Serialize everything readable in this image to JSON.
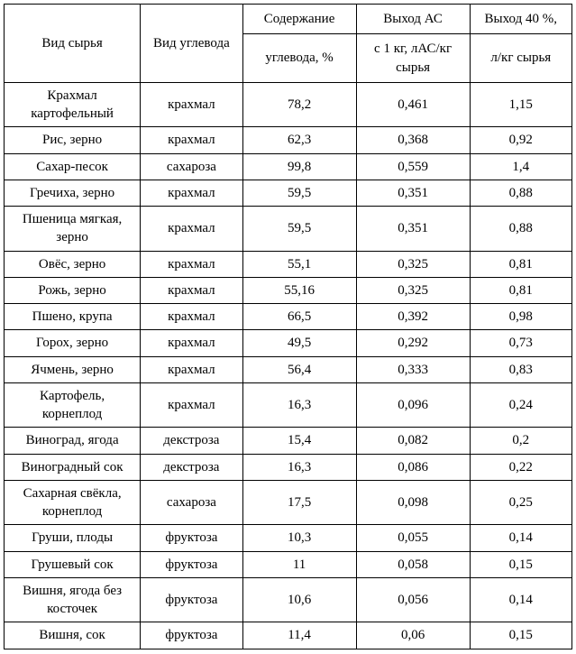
{
  "table": {
    "type": "table",
    "background_color": "#ffffff",
    "border_color": "#000000",
    "font_family": "Times New Roman",
    "font_size": 15,
    "text_color": "#000000",
    "columns": [
      {
        "key": "raw",
        "header1": "Вид сырья",
        "header2": "",
        "width_pct": 24,
        "align": "center"
      },
      {
        "key": "carb",
        "header1": "Вид углевода",
        "header2": "",
        "width_pct": 18,
        "align": "center"
      },
      {
        "key": "content",
        "header1": "Содержание",
        "header2": "углевода, %",
        "width_pct": 20,
        "align": "center"
      },
      {
        "key": "ac",
        "header1": "Выход АС",
        "header2": "с 1 кг, лАС/кг сырья",
        "width_pct": 20,
        "align": "center"
      },
      {
        "key": "forty",
        "header1": "Выход 40 %,",
        "header2": "л/кг сырья",
        "width_pct": 18,
        "align": "center"
      }
    ],
    "rows": [
      {
        "raw": "Крахмал картофельный",
        "carb": "крахмал",
        "content": "78,2",
        "ac": "0,461",
        "forty": "1,15"
      },
      {
        "raw": "Рис, зерно",
        "carb": "крахмал",
        "content": "62,3",
        "ac": "0,368",
        "forty": "0,92"
      },
      {
        "raw": "Сахар-песок",
        "carb": "сахароза",
        "content": "99,8",
        "ac": "0,559",
        "forty": "1,4"
      },
      {
        "raw": "Гречиха, зерно",
        "carb": "крахмал",
        "content": "59,5",
        "ac": "0,351",
        "forty": "0,88"
      },
      {
        "raw": "Пшеница мягкая, зерно",
        "carb": "крахмал",
        "content": "59,5",
        "ac": "0,351",
        "forty": "0,88"
      },
      {
        "raw": "Овёс, зерно",
        "carb": "крахмал",
        "content": "55,1",
        "ac": "0,325",
        "forty": "0,81"
      },
      {
        "raw": "Рожь, зерно",
        "carb": "крахмал",
        "content": "55,16",
        "ac": "0,325",
        "forty": "0,81"
      },
      {
        "raw": "Пшено, крупа",
        "carb": "крахмал",
        "content": "66,5",
        "ac": "0,392",
        "forty": "0,98"
      },
      {
        "raw": "Горох, зерно",
        "carb": "крахмал",
        "content": "49,5",
        "ac": "0,292",
        "forty": "0,73"
      },
      {
        "raw": "Ячмень, зерно",
        "carb": "крахмал",
        "content": "56,4",
        "ac": "0,333",
        "forty": "0,83"
      },
      {
        "raw": "Картофель, корнеплод",
        "carb": "крахмал",
        "content": "16,3",
        "ac": "0,096",
        "forty": "0,24"
      },
      {
        "raw": "Виноград, ягода",
        "carb": "декстроза",
        "content": "15,4",
        "ac": "0,082",
        "forty": "0,2"
      },
      {
        "raw": "Виноградный сок",
        "carb": "декстроза",
        "content": "16,3",
        "ac": "0,086",
        "forty": "0,22"
      },
      {
        "raw": "Сахарная свёкла, корнеплод",
        "carb": "сахароза",
        "content": "17,5",
        "ac": "0,098",
        "forty": "0,25"
      },
      {
        "raw": "Груши, плоды",
        "carb": "фруктоза",
        "content": "10,3",
        "ac": "0,055",
        "forty": "0,14"
      },
      {
        "raw": "Грушевый сок",
        "carb": "фруктоза",
        "content": "11",
        "ac": "0,058",
        "forty": "0,15"
      },
      {
        "raw": "Вишня, ягода без косточек",
        "carb": "фруктоза",
        "content": "10,6",
        "ac": "0,056",
        "forty": "0,14"
      },
      {
        "raw": "Вишня, сок",
        "carb": "фруктоза",
        "content": "11,4",
        "ac": "0,06",
        "forty": "0,15"
      }
    ]
  }
}
